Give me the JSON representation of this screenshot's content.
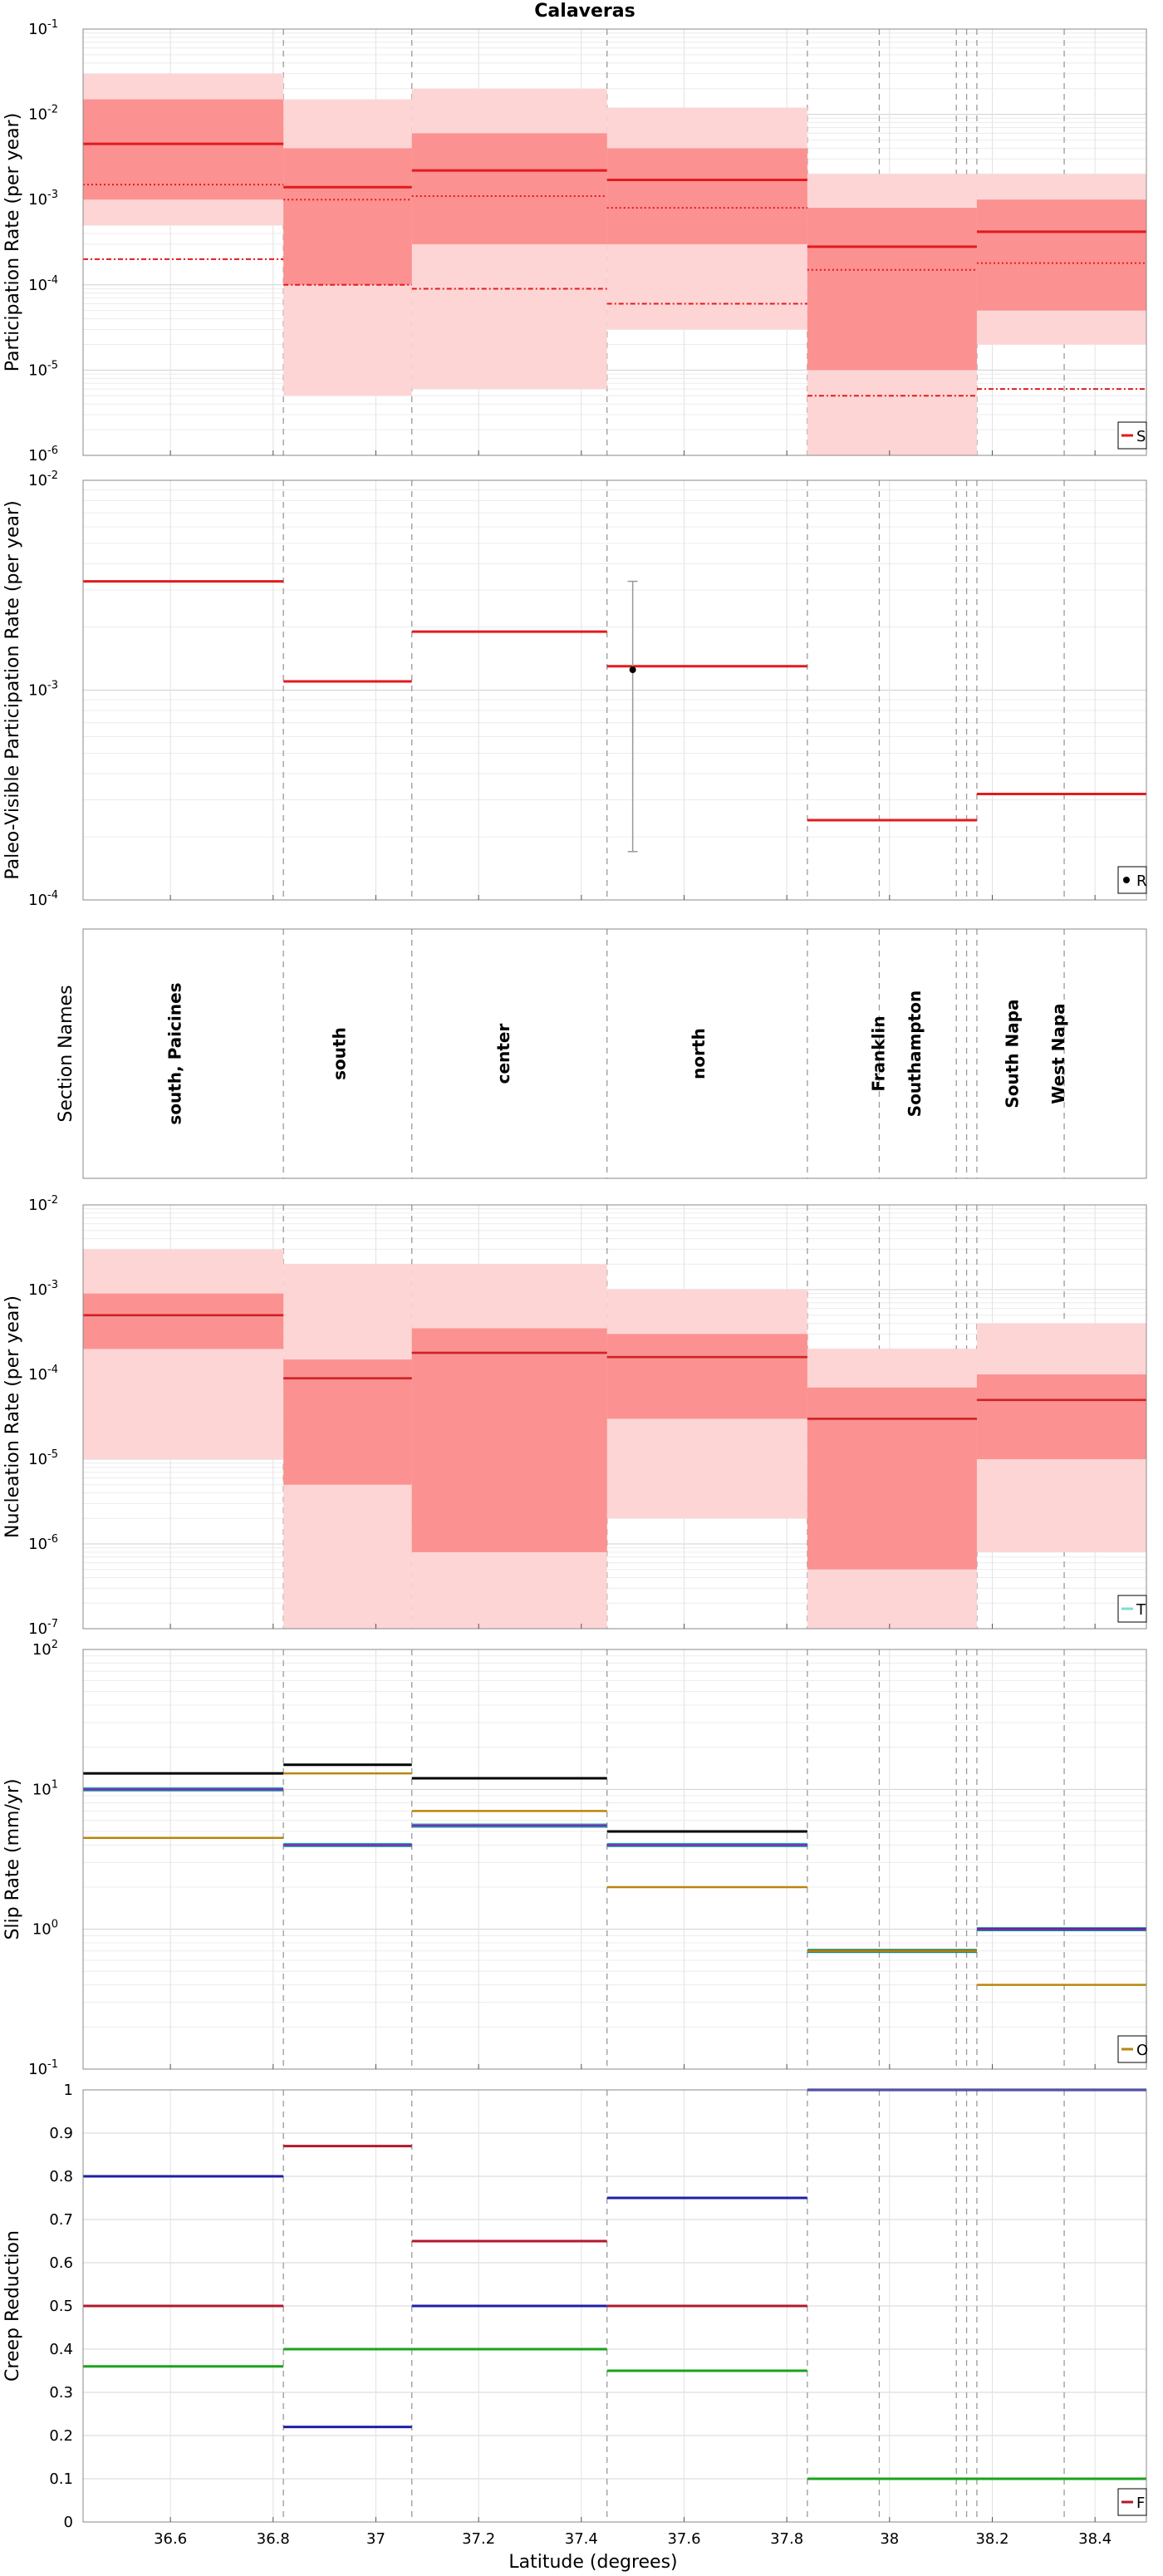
{
  "figure": {
    "title": "Calaveras",
    "xlabel": "Latitude (degrees)",
    "xlim": [
      36.43,
      38.5
    ],
    "xticks": [
      36.6,
      36.8,
      37,
      37.2,
      37.4,
      37.6,
      37.8,
      38,
      38.2,
      38.4
    ],
    "xtick_labels": [
      "36.6",
      "36.8",
      "37",
      "37.2",
      "37.4",
      "37.6",
      "37.8",
      "38",
      "38.2",
      "38.4"
    ],
    "section_boundaries": [
      36.82,
      37.07,
      37.45,
      37.84,
      37.98,
      38.13,
      38.15,
      38.17,
      38.34
    ]
  },
  "chart_data": [
    {
      "id": "participation",
      "type": "step-line-band",
      "ylabel": "Participation Rate (per year)",
      "yscale": "log",
      "ylim": [
        1e-06,
        0.1
      ],
      "ytick_base_labels": [
        "10",
        "10",
        "10",
        "10",
        "10",
        "10"
      ],
      "ytick_exponents": [
        "-6",
        "-5",
        "-4",
        "-3",
        "-2",
        "-1"
      ],
      "legend_label": "S",
      "colors": {
        "line": "#e31a1c",
        "band_inner": "#fc9191",
        "band_outer": "#fdd5d5"
      },
      "segments": [
        {
          "x0": 36.43,
          "x1": 36.82,
          "mean": 0.0045,
          "p2": 0.0015,
          "p3": 0.0002,
          "inner": [
            0.001,
            0.015
          ],
          "outer": [
            0.0005,
            0.03
          ]
        },
        {
          "x0": 36.82,
          "x1": 37.07,
          "mean": 0.0014,
          "p2": 0.001,
          "p3": 0.0001,
          "inner": [
            0.0001,
            0.004
          ],
          "outer": [
            5e-06,
            0.015
          ]
        },
        {
          "x0": 37.07,
          "x1": 37.45,
          "mean": 0.0022,
          "p2": 0.0011,
          "p3": 9e-05,
          "inner": [
            0.0003,
            0.006
          ],
          "outer": [
            6e-06,
            0.02
          ]
        },
        {
          "x0": 37.45,
          "x1": 37.84,
          "mean": 0.0017,
          "p2": 0.0008,
          "p3": 6e-05,
          "inner": [
            0.0003,
            0.004
          ],
          "outer": [
            3e-05,
            0.012
          ]
        },
        {
          "x0": 37.84,
          "x1": 38.17,
          "mean": 0.00028,
          "p2": 0.00015,
          "p3": 5e-06,
          "inner": [
            1e-05,
            0.0008
          ],
          "outer": [
            1e-06,
            0.002
          ]
        },
        {
          "x0": 38.17,
          "x1": 38.5,
          "mean": 0.00042,
          "p2": 0.00018,
          "p3": 6e-06,
          "inner": [
            5e-05,
            0.001
          ],
          "outer": [
            2e-05,
            0.002
          ]
        }
      ]
    },
    {
      "id": "paleo",
      "type": "step-line",
      "ylabel": "Paleo-Visible Participation Rate (per year)",
      "yscale": "log",
      "ylim": [
        0.0001,
        0.01
      ],
      "ytick_base_labels": [
        "10",
        "10",
        "10"
      ],
      "ytick_exponents": [
        "-4",
        "-3",
        "-2"
      ],
      "legend_label": "R",
      "colors": {
        "line": "#e31a1c"
      },
      "segments": [
        {
          "x0": 36.43,
          "x1": 36.82,
          "y": 0.0033
        },
        {
          "x0": 36.82,
          "x1": 37.07,
          "y": 0.0011
        },
        {
          "x0": 37.07,
          "x1": 37.45,
          "y": 0.0019
        },
        {
          "x0": 37.45,
          "x1": 37.84,
          "y": 0.0013
        },
        {
          "x0": 37.84,
          "x1": 38.17,
          "y": 0.00024
        },
        {
          "x0": 38.17,
          "x1": 38.5,
          "y": 0.00032
        }
      ],
      "paleo_point": {
        "x": 37.5,
        "y": 0.00125,
        "low": 0.00017,
        "high": 0.0033
      }
    },
    {
      "id": "sections",
      "type": "labels",
      "ylabel": "Section Names",
      "labels": [
        {
          "x": 36.62,
          "text": "south, Paicines"
        },
        {
          "x": 36.94,
          "text": "south"
        },
        {
          "x": 37.26,
          "text": "center"
        },
        {
          "x": 37.64,
          "text": "north"
        },
        {
          "x": 37.99,
          "text": "Franklin"
        },
        {
          "x": 38.06,
          "text": "Southampton"
        },
        {
          "x": 38.25,
          "text": "South Napa"
        },
        {
          "x": 38.34,
          "text": "West Napa"
        }
      ]
    },
    {
      "id": "nucleation",
      "type": "step-line-band",
      "ylabel": "Nucleation Rate (per year)",
      "yscale": "log",
      "ylim": [
        1e-07,
        0.01
      ],
      "ytick_base_labels": [
        "10",
        "10",
        "10",
        "10",
        "10",
        "10"
      ],
      "ytick_exponents": [
        "-7",
        "-6",
        "-5",
        "-4",
        "-3",
        "-2"
      ],
      "legend_label": "T",
      "colors": {
        "line": "#e31a1c",
        "band_inner": "#fc9191",
        "band_outer": "#fdd5d5",
        "target": "#7fdcd4"
      },
      "segments": [
        {
          "x0": 36.43,
          "x1": 36.82,
          "mean": 0.0005,
          "inner": [
            0.0002,
            0.0009
          ],
          "outer": [
            1e-05,
            0.003
          ]
        },
        {
          "x0": 36.82,
          "x1": 37.07,
          "mean": 9e-05,
          "inner": [
            5e-06,
            0.00015
          ],
          "outer": [
            1e-07,
            0.002
          ]
        },
        {
          "x0": 37.07,
          "x1": 37.45,
          "mean": 0.00018,
          "inner": [
            8e-07,
            0.00035
          ],
          "outer": [
            1e-07,
            0.002
          ]
        },
        {
          "x0": 37.45,
          "x1": 37.84,
          "mean": 0.00016,
          "inner": [
            3e-05,
            0.0003
          ],
          "outer": [
            2e-06,
            0.001
          ]
        },
        {
          "x0": 37.84,
          "x1": 38.17,
          "mean": 3e-05,
          "inner": [
            5e-07,
            7e-05
          ],
          "outer": [
            1e-07,
            0.0002
          ]
        },
        {
          "x0": 38.17,
          "x1": 38.5,
          "mean": 5e-05,
          "inner": [
            1e-05,
            0.0001
          ],
          "outer": [
            8e-07,
            0.0004
          ]
        }
      ]
    },
    {
      "id": "slip",
      "type": "step-line",
      "ylabel": "Slip Rate (mm/yr)",
      "yscale": "log",
      "ylim": [
        0.1,
        100
      ],
      "ytick_base_labels": [
        "10",
        "10",
        "10",
        "10"
      ],
      "ytick_exponents": [
        "-1",
        "0",
        "1",
        "2"
      ],
      "legend_label": "O",
      "colors": {
        "target": "#000000",
        "solution": "#7b2cbf",
        "olive": "#b8860b",
        "teal": "#1fa7a0"
      },
      "segments": [
        {
          "x0": 36.43,
          "x1": 36.82,
          "target": 13,
          "solution": 10,
          "olive": 4.5
        },
        {
          "x0": 36.82,
          "x1": 37.07,
          "target": 15,
          "solution": 4,
          "olive": 13
        },
        {
          "x0": 37.07,
          "x1": 37.45,
          "target": 12,
          "solution": 5.5,
          "olive": 7
        },
        {
          "x0": 37.45,
          "x1": 37.84,
          "target": 5,
          "solution": 4,
          "olive": 2
        },
        {
          "x0": 37.84,
          "x1": 38.17,
          "target": 0.7,
          "solution": 0.7,
          "olive": 0.7
        },
        {
          "x0": 38.17,
          "x1": 38.5,
          "target": 1,
          "solution": 1,
          "olive": 0.4
        }
      ]
    },
    {
      "id": "creep",
      "type": "step-line",
      "ylabel": "Creep Reduction",
      "yscale": "linear",
      "ylim": [
        0,
        1
      ],
      "yticks": [
        0,
        0.1,
        0.2,
        0.3,
        0.4,
        0.5,
        0.6,
        0.7,
        0.8,
        0.9,
        1
      ],
      "ytick_labels": [
        "0",
        "0.1",
        "0.2",
        "0.3",
        "0.4",
        "0.5",
        "0.6",
        "0.7",
        "0.8",
        "0.9",
        "1"
      ],
      "legend_label": "F",
      "colors": {
        "red": "#b2182b",
        "blue": "#1f1fa8",
        "green": "#1aa31a"
      },
      "series": [
        {
          "name": "blue",
          "segments": [
            {
              "x0": 36.43,
              "x1": 36.82,
              "y": 0.8
            },
            {
              "x0": 36.82,
              "x1": 37.07,
              "y": 0.22
            },
            {
              "x0": 37.07,
              "x1": 37.45,
              "y": 0.5
            },
            {
              "x0": 37.45,
              "x1": 37.84,
              "y": 0.75
            },
            {
              "x0": 37.84,
              "x1": 38.5,
              "y": 1.0
            }
          ]
        },
        {
          "name": "red",
          "segments": [
            {
              "x0": 36.43,
              "x1": 36.82,
              "y": 0.5
            },
            {
              "x0": 36.82,
              "x1": 37.07,
              "y": 0.87
            },
            {
              "x0": 37.07,
              "x1": 37.45,
              "y": 0.65
            },
            {
              "x0": 37.45,
              "x1": 37.84,
              "y": 0.5
            }
          ]
        },
        {
          "name": "green",
          "segments": [
            {
              "x0": 36.43,
              "x1": 36.82,
              "y": 0.36
            },
            {
              "x0": 36.82,
              "x1": 37.45,
              "y": 0.4
            },
            {
              "x0": 37.45,
              "x1": 37.84,
              "y": 0.35
            },
            {
              "x0": 37.84,
              "x1": 38.5,
              "y": 0.1
            }
          ]
        }
      ]
    }
  ]
}
